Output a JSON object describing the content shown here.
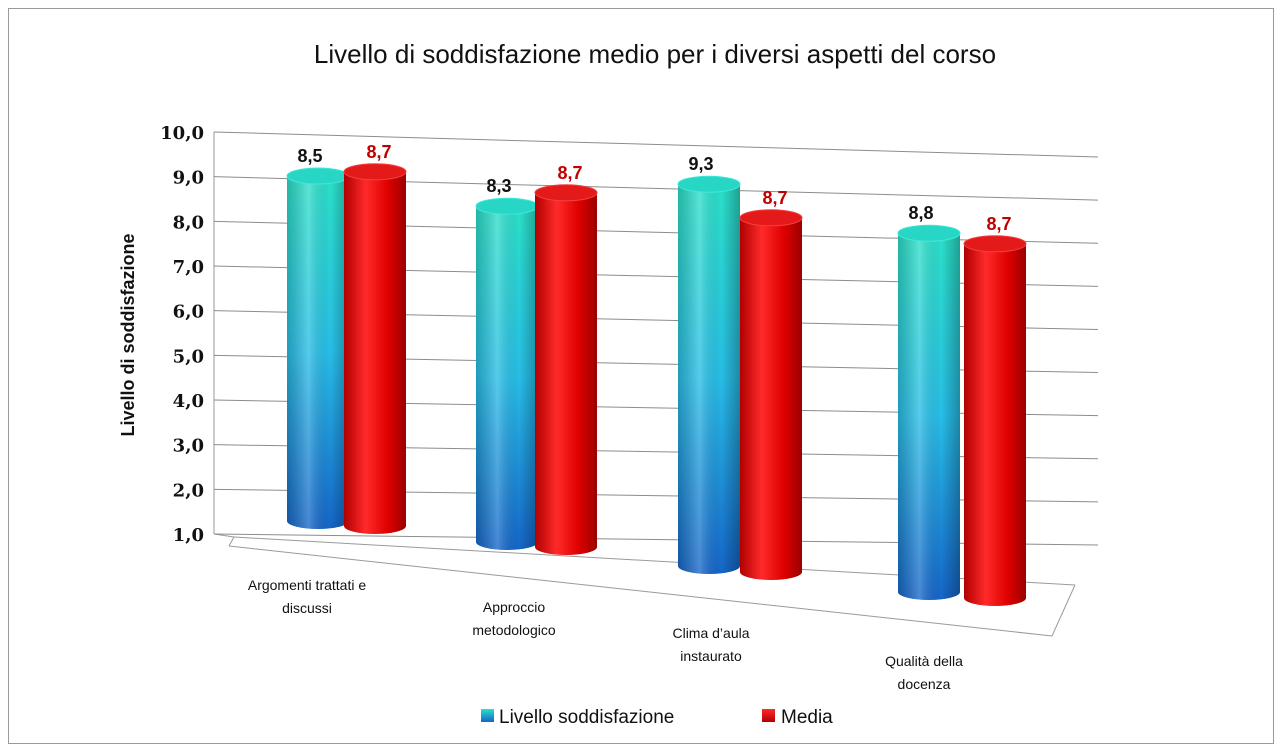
{
  "chart_data": {
    "type": "bar",
    "style": "3d-cylinder",
    "title": "Livello di soddisfazione medio per i diversi aspetti del corso",
    "xlabel": "",
    "ylabel": "Livello di soddisfazione",
    "ylim": [
      1,
      10
    ],
    "y_ticks": [
      "1,0",
      "2,0",
      "3,0",
      "4,0",
      "5,0",
      "6,0",
      "7,0",
      "8,0",
      "9,0",
      "10,0"
    ],
    "categories": [
      [
        "Argomenti trattati e",
        "discussi"
      ],
      [
        "Approccio",
        "metodologico"
      ],
      [
        "Clima d’aula",
        "instaurato"
      ],
      [
        "Qualità della",
        "docenza"
      ]
    ],
    "series": [
      {
        "name": "Livello soddisfazione",
        "values": [
          8.5,
          8.3,
          9.3,
          8.8
        ],
        "labels": [
          "8,5",
          "8,3",
          "9,3",
          "8,8"
        ],
        "color": "#1ea6d8"
      },
      {
        "name": "Media",
        "values": [
          8.7,
          8.7,
          8.7,
          8.7
        ],
        "labels": [
          "8,7",
          "8,7",
          "8,7",
          "8,7"
        ],
        "color": "#e01010"
      }
    ],
    "grid": true,
    "legend": "bottom"
  }
}
